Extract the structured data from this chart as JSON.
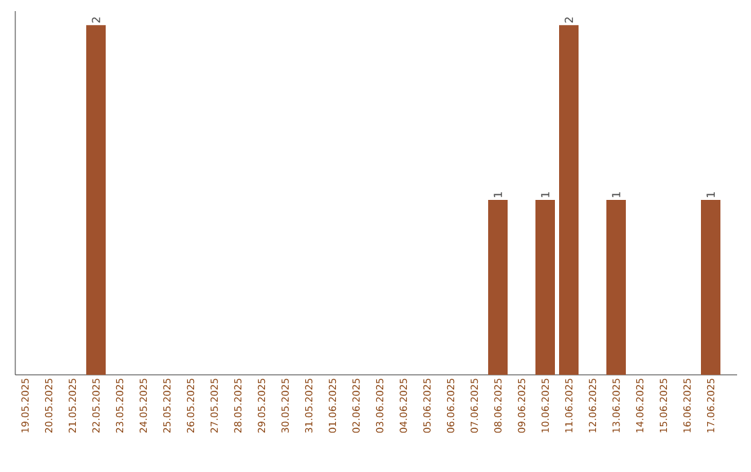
{
  "chart_data": {
    "type": "bar",
    "categories": [
      "19.05.2025",
      "20.05.2025",
      "21.05.2025",
      "22.05.2025",
      "23.05.2025",
      "24.05.2025",
      "25.05.2025",
      "26.05.2025",
      "27.05.2025",
      "28.05.2025",
      "29.05.2025",
      "30.05.2025",
      "31.05.2025",
      "01.06.2025",
      "02.06.2025",
      "03.06.2025",
      "04.06.2025",
      "05.06.2025",
      "06.06.2025",
      "07.06.2025",
      "08.06.2025",
      "09.06.2025",
      "10.06.2025",
      "11.06.2025",
      "12.06.2025",
      "13.06.2025",
      "14.06.2025",
      "15.06.2025",
      "16.06.2025",
      "17.06.2025"
    ],
    "values": [
      0,
      0,
      0,
      2,
      0,
      0,
      0,
      0,
      0,
      0,
      0,
      0,
      0,
      0,
      0,
      0,
      0,
      0,
      0,
      0,
      1,
      0,
      1,
      2,
      0,
      1,
      0,
      0,
      0,
      1
    ],
    "value_labels": [
      null,
      null,
      null,
      "2",
      null,
      null,
      null,
      null,
      null,
      null,
      null,
      null,
      null,
      null,
      null,
      null,
      null,
      null,
      null,
      null,
      "1",
      null,
      "1",
      "2",
      null,
      "1",
      null,
      null,
      null,
      "1"
    ],
    "color": "#a0522d",
    "ylim": [
      0,
      2.08
    ],
    "tick_labels": "x"
  }
}
